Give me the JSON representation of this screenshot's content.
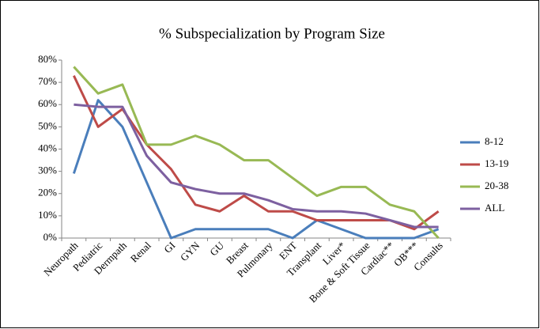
{
  "chart_data": {
    "type": "line",
    "title": "% Subspecialization by Program Size",
    "categories": [
      "Neuropath",
      "Pediatric",
      "Dermpath",
      "Renal",
      "GI",
      "GYN",
      "GU",
      "Breast",
      "Pulmonary",
      "ENT",
      "Transplant",
      "Liver*",
      "Bone & Soft Tissue",
      "Cardiac**",
      "OB***",
      "Consults"
    ],
    "series": [
      {
        "name": "8-12",
        "color": "#4a7ebb",
        "values": [
          29,
          62,
          50,
          25,
          0,
          4,
          4,
          4,
          4,
          0,
          8,
          4,
          0,
          0,
          0,
          4
        ]
      },
      {
        "name": "13-19",
        "color": "#be4b48",
        "values": [
          73,
          50,
          58,
          42,
          31,
          15,
          12,
          19,
          12,
          12,
          8,
          8,
          8,
          8,
          4,
          12
        ]
      },
      {
        "name": "20-38",
        "color": "#98b954",
        "values": [
          77,
          65,
          69,
          42,
          42,
          46,
          42,
          35,
          35,
          27,
          19,
          23,
          23,
          15,
          12,
          0
        ]
      },
      {
        "name": "ALL",
        "color": "#7d60a0",
        "values": [
          60,
          59,
          59,
          37,
          25,
          22,
          20,
          20,
          17,
          13,
          12,
          12,
          11,
          8,
          5,
          5
        ]
      }
    ],
    "ylim": [
      0,
      80
    ],
    "yticks": [
      {
        "value": 0,
        "label": "0%"
      },
      {
        "value": 10,
        "label": "10%"
      },
      {
        "value": 20,
        "label": "20%"
      },
      {
        "value": 30,
        "label": "30%"
      },
      {
        "value": 40,
        "label": "40%"
      },
      {
        "value": 50,
        "label": "50%"
      },
      {
        "value": 60,
        "label": "60%"
      },
      {
        "value": 70,
        "label": "70%"
      },
      {
        "value": 80,
        "label": "80%"
      }
    ],
    "legend": "right"
  }
}
